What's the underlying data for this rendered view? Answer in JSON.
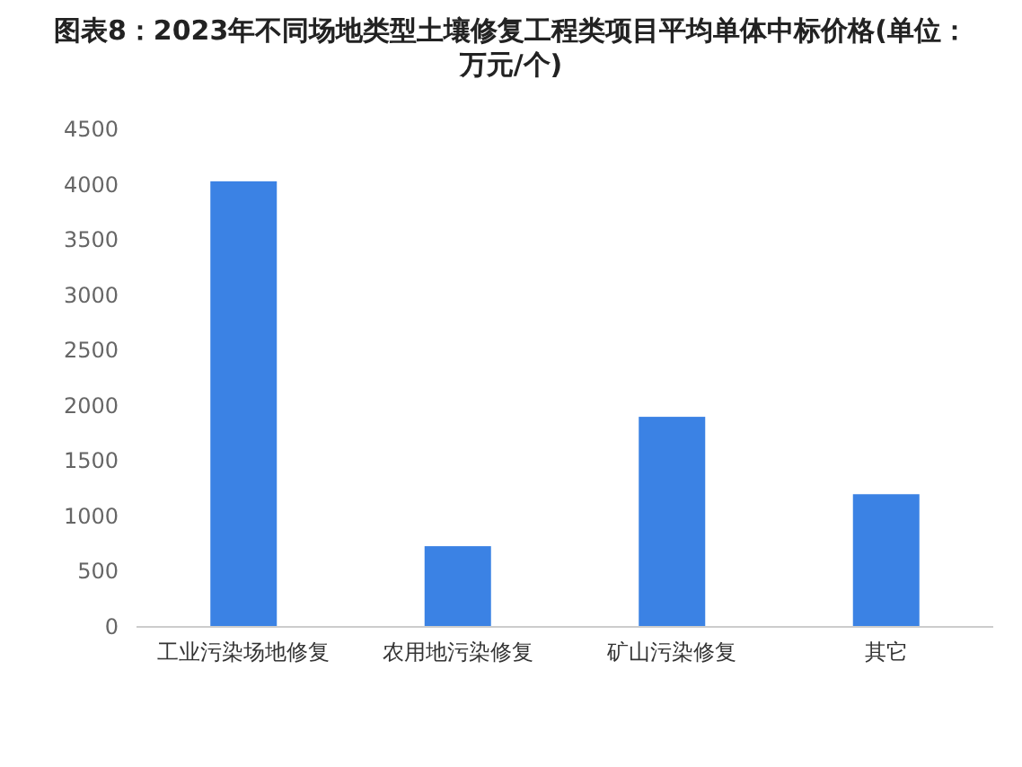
{
  "chart_data": {
    "type": "bar",
    "title": "图表8：2023年不同场地类型土壤修复工程类项目平均单体中标价格(单位：万元/个)",
    "categories": [
      "工业污染场地修复",
      "农用地污染修复",
      "矿山污染修复",
      "其它"
    ],
    "values": [
      4030,
      730,
      1900,
      1200
    ],
    "color": "#3b82e4",
    "ylim": [
      0,
      4500
    ],
    "yticks": [
      0,
      500,
      1000,
      1500,
      2000,
      2500,
      3000,
      3500,
      4000,
      4500
    ]
  }
}
